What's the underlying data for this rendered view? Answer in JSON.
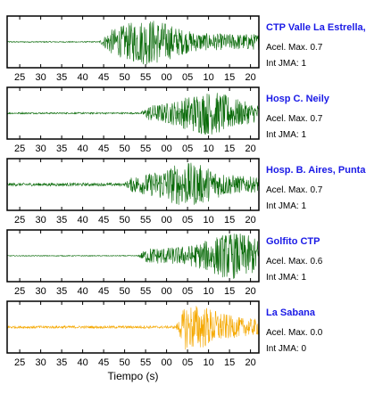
{
  "chart_data": {
    "type": "line",
    "xlabel": "Tiempo (s)",
    "x_tick_labels": [
      "25",
      "30",
      "35",
      "40",
      "45",
      "50",
      "55",
      "00",
      "05",
      "10",
      "15",
      "20"
    ],
    "panels": [
      {
        "station": "CTP Valle La Estrella, L",
        "acel_max_label": "Acel. Max. 0.7",
        "int_jma_label": "Int JMA: 1",
        "color": "#0a6b0a",
        "onset_tick": 43.8,
        "noise_amplitude": 0.02,
        "signal_amplitude": 0.9,
        "peak_tick": 55.5
      },
      {
        "station": "Hosp C. Neily",
        "acel_max_label": "Acel. Max. 0.7",
        "int_jma_label": "Int JMA: 1",
        "color": "#0a6b0a",
        "onset_tick": 53.5,
        "noise_amplitude": 0.03,
        "signal_amplitude": 0.85,
        "peak_tick": 70.0
      },
      {
        "station": "Hosp. B. Aires, Puntare",
        "acel_max_label": "Acel. Max. 0.7",
        "int_jma_label": "Int JMA: 1",
        "color": "#0a6b0a",
        "onset_tick": 49.5,
        "noise_amplitude": 0.06,
        "signal_amplitude": 0.85,
        "peak_tick": 65.0
      },
      {
        "station": "Golfito CTP",
        "acel_max_label": "Acel. Max. 0.6",
        "int_jma_label": "Int JMA: 1",
        "color": "#0a6b0a",
        "onset_tick": 53.0,
        "noise_amplitude": 0.015,
        "signal_amplitude": 0.9,
        "peak_tick": 76.0
      },
      {
        "station": "La Sabana",
        "acel_max_label": "Acel. Max. 0.0",
        "int_jma_label": "Int JMA: 0",
        "color": "#f5a800",
        "onset_tick": 62.0,
        "noise_amplitude": 0.05,
        "signal_amplitude": 0.9,
        "peak_tick": 66.0
      }
    ]
  }
}
